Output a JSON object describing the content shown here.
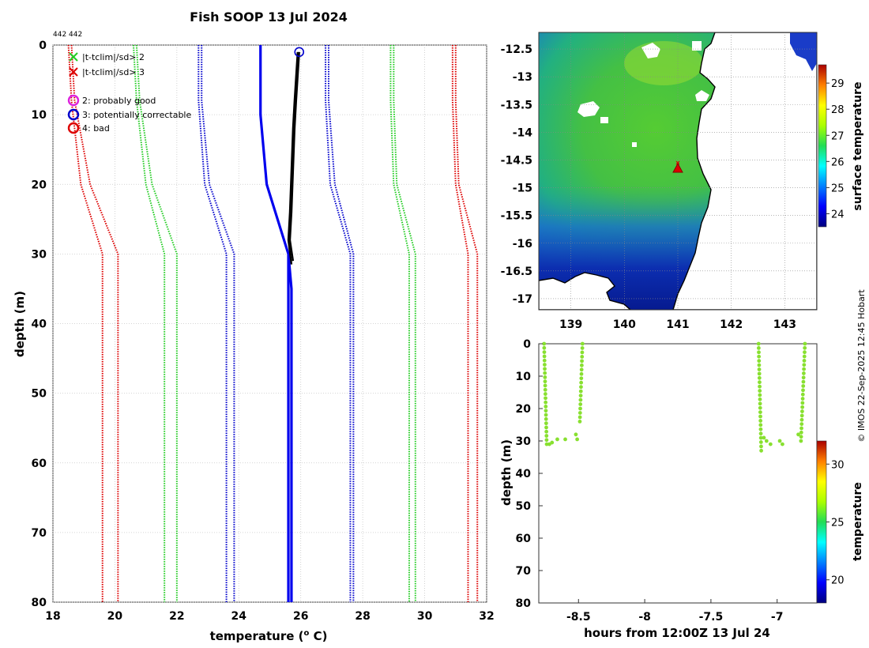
{
  "title": "Fish SOOP 13 Jul 2024",
  "header_ids": "442 442",
  "copyright": "© IMOS 22-Sep-2025 12:45 Hobart",
  "chart_data": [
    {
      "type": "line",
      "name": "temperature-profile",
      "xlabel": "temperature (",
      "xlabel_sup": "o",
      "xlabel_unit": " C)",
      "ylabel": "depth (m)",
      "xlim": [
        18,
        32
      ],
      "ylim": [
        80,
        0
      ],
      "xticks": [
        "18",
        "20",
        "22",
        "24",
        "26",
        "28",
        "30",
        "32"
      ],
      "yticks": [
        "0",
        "10",
        "20",
        "30",
        "40",
        "50",
        "60",
        "70",
        "80"
      ],
      "legend": [
        {
          "marker": "x",
          "color": "#22cc22",
          "label": "|t-tclim|/sd> 2"
        },
        {
          "marker": "x",
          "color": "#dd0000",
          "label": "|t-tclim|/sd> 3"
        },
        {
          "marker": "o",
          "color": "#dd22dd",
          "label": "2: probably good"
        },
        {
          "marker": "o",
          "color": "#0000cc",
          "label": "3: potentially correctable"
        },
        {
          "marker": "o",
          "color": "#dd0000",
          "label": "4: bad"
        }
      ],
      "flag_point": {
        "t": 25.95,
        "d": 1,
        "flag": 3
      },
      "series": [
        {
          "name": "climatology mean",
          "color": "#0000ee",
          "style": "solid",
          "points": [
            [
              24.7,
              0
            ],
            [
              24.7,
              10
            ],
            [
              24.9,
              20
            ],
            [
              25.6,
              30
            ],
            [
              25.7,
              35
            ],
            [
              25.7,
              80
            ]
          ]
        },
        {
          "name": "climatology mean (alt)",
          "color": "#0000ee",
          "style": "solid",
          "points": [
            [
              25.6,
              30
            ],
            [
              25.6,
              80
            ]
          ]
        },
        {
          "name": "observed profile",
          "color": "#000000",
          "style": "solid",
          "points": [
            [
              25.9,
              1
            ],
            [
              25.8,
              8
            ],
            [
              25.75,
              12
            ],
            [
              25.7,
              18
            ],
            [
              25.65,
              24
            ],
            [
              25.6,
              28
            ],
            [
              25.7,
              31.5
            ]
          ]
        },
        {
          "name": "observed profile 2",
          "color": "#000000",
          "style": "solid",
          "points": [
            [
              25.95,
              1
            ],
            [
              25.85,
              8
            ],
            [
              25.8,
              12
            ],
            [
              25.75,
              18
            ],
            [
              25.7,
              24
            ],
            [
              25.65,
              28
            ],
            [
              25.75,
              31
            ]
          ]
        },
        {
          "name": "-1 sd inner",
          "color": "#0000cc",
          "style": "dotted",
          "points": [
            [
              22.7,
              0
            ],
            [
              22.7,
              8
            ],
            [
              22.9,
              20
            ],
            [
              23.6,
              30
            ],
            [
              23.6,
              80
            ]
          ]
        },
        {
          "name": "+1 sd inner",
          "color": "#0000cc",
          "style": "dotted",
          "points": [
            [
              26.8,
              0
            ],
            [
              26.8,
              8
            ],
            [
              26.95,
              20
            ],
            [
              27.6,
              30
            ],
            [
              27.6,
              80
            ]
          ]
        },
        {
          "name": "-1 sd outer",
          "color": "#0000cc",
          "style": "dotted",
          "points": [
            [
              22.8,
              0
            ],
            [
              22.8,
              8
            ],
            [
              23.05,
              20
            ],
            [
              23.85,
              30
            ],
            [
              23.85,
              80
            ]
          ]
        },
        {
          "name": "+1 sd outer",
          "color": "#0000cc",
          "style": "dotted",
          "points": [
            [
              26.9,
              0
            ],
            [
              26.9,
              8
            ],
            [
              27.1,
              20
            ],
            [
              27.7,
              30
            ],
            [
              27.7,
              80
            ]
          ]
        },
        {
          "name": "-2 sd",
          "color": "#22cc22",
          "style": "dotted",
          "points": [
            [
              20.6,
              0
            ],
            [
              20.7,
              8
            ],
            [
              21.0,
              20
            ],
            [
              21.6,
              30
            ],
            [
              21.6,
              80
            ]
          ]
        },
        {
          "name": "-2 sd outer",
          "color": "#22cc22",
          "style": "dotted",
          "points": [
            [
              20.7,
              0
            ],
            [
              20.8,
              8
            ],
            [
              21.2,
              20
            ],
            [
              22.0,
              30
            ],
            [
              22.0,
              80
            ]
          ]
        },
        {
          "name": "+2 sd",
          "color": "#22cc22",
          "style": "dotted",
          "points": [
            [
              28.9,
              0
            ],
            [
              28.9,
              8
            ],
            [
              29.0,
              20
            ],
            [
              29.5,
              30
            ],
            [
              29.5,
              80
            ]
          ]
        },
        {
          "name": "+2 sd outer",
          "color": "#22cc22",
          "style": "dotted",
          "points": [
            [
              29.0,
              0
            ],
            [
              29.0,
              8
            ],
            [
              29.1,
              20
            ],
            [
              29.7,
              30
            ],
            [
              29.7,
              80
            ]
          ]
        },
        {
          "name": "-3 sd",
          "color": "#dd0000",
          "style": "dotted",
          "points": [
            [
              18.5,
              0
            ],
            [
              18.6,
              8
            ],
            [
              18.9,
              20
            ],
            [
              19.6,
              30
            ],
            [
              19.6,
              80
            ]
          ]
        },
        {
          "name": "-3 sd outer",
          "color": "#dd0000",
          "style": "dotted",
          "points": [
            [
              18.6,
              0
            ],
            [
              18.7,
              8
            ],
            [
              19.2,
              20
            ],
            [
              20.1,
              30
            ],
            [
              20.1,
              80
            ]
          ]
        },
        {
          "name": "+3 sd",
          "color": "#dd0000",
          "style": "dotted",
          "points": [
            [
              30.9,
              0
            ],
            [
              30.9,
              8
            ],
            [
              31.0,
              20
            ],
            [
              31.4,
              30
            ],
            [
              31.4,
              80
            ]
          ]
        },
        {
          "name": "+3 sd outer",
          "color": "#dd0000",
          "style": "dotted",
          "points": [
            [
              31.0,
              0
            ],
            [
              31.0,
              8
            ],
            [
              31.1,
              20
            ],
            [
              31.7,
              30
            ],
            [
              31.7,
              80
            ]
          ]
        }
      ]
    },
    {
      "type": "heatmap",
      "name": "sst-map",
      "xlim": [
        138.4,
        143.6
      ],
      "ylim": [
        -17.2,
        -12.2
      ],
      "xticks": [
        "139",
        "140",
        "141",
        "142",
        "143"
      ],
      "yticks": [
        "-12.5",
        "-13",
        "-13.5",
        "-14",
        "-14.5",
        "-15",
        "-15.5",
        "-16",
        "-16.5",
        "-17"
      ],
      "colorbar_label": "surface temperature",
      "colorbar_range": [
        23.5,
        29.7
      ],
      "colorbar_ticks": [
        "24",
        "25",
        "26",
        "27",
        "28",
        "29"
      ],
      "marker": {
        "lon": 141.0,
        "lat": -14.65,
        "symbol": "triangle"
      }
    },
    {
      "type": "scatter",
      "name": "depth-time",
      "xlabel": "hours from 12:00Z 13 Jul 24",
      "ylabel": "depth (m)",
      "xlim": [
        -8.8,
        -6.7
      ],
      "ylim": [
        80,
        0
      ],
      "xticks": [
        "-8.5",
        "-8",
        "-7.5",
        "-7"
      ],
      "yticks": [
        "0",
        "10",
        "20",
        "30",
        "40",
        "50",
        "60",
        "70",
        "80"
      ],
      "colorbar_label": "temperature",
      "colorbar_range": [
        18,
        32
      ],
      "colorbar_ticks": [
        "20",
        "25",
        "30"
      ],
      "point_color": "#88e030",
      "casts": [
        {
          "x_start": -8.76,
          "x_end": -8.74,
          "d_start": 0,
          "d_end": 31
        },
        {
          "x_start": -8.47,
          "x_end": -8.49,
          "d_start": 0,
          "d_end": 24
        },
        {
          "x_start": -7.14,
          "x_end": -7.12,
          "d_start": 0,
          "d_end": 33
        },
        {
          "x_start": -6.79,
          "x_end": -6.82,
          "d_start": 0,
          "d_end": 30
        }
      ],
      "extra_points": [
        [
          -8.72,
          31
        ],
        [
          -8.7,
          30.5
        ],
        [
          -8.66,
          29.5
        ],
        [
          -8.6,
          29.5
        ],
        [
          -8.52,
          28
        ],
        [
          -8.51,
          29.5
        ],
        [
          -7.1,
          29
        ],
        [
          -7.08,
          30
        ],
        [
          -7.05,
          31
        ],
        [
          -6.98,
          30
        ],
        [
          -6.96,
          31
        ],
        [
          -6.84,
          28
        ]
      ]
    }
  ]
}
